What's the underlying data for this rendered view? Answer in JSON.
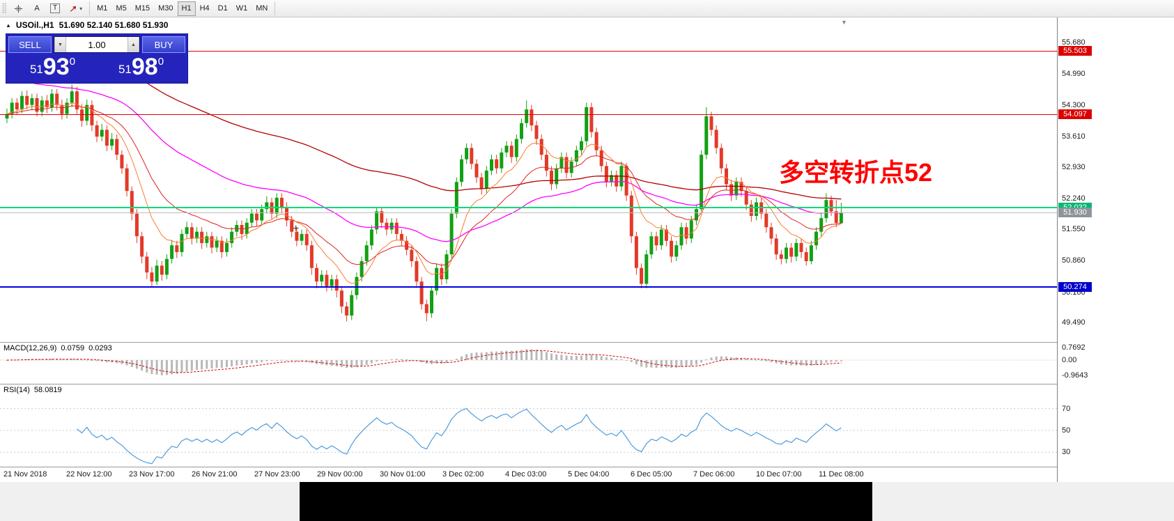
{
  "toolbar": {
    "tools": {
      "text_label": "A",
      "text_box": "T"
    },
    "timeframes": [
      "M1",
      "M5",
      "M15",
      "M30",
      "H1",
      "H4",
      "D1",
      "W1",
      "MN"
    ],
    "active_timeframe": "H1"
  },
  "chart": {
    "symbol_title": "USOil.,H1",
    "ohlc": "51.690 52.140 51.680 51.930",
    "annotation": "多空转折点52",
    "icons": {
      "collapse": "▲",
      "dropdown_caret": "▾",
      "spinner_down": "▼",
      "spinner_up": "▲",
      "shift_marker": "▼",
      "crosshair_cursor": "+"
    },
    "trade": {
      "sell": "SELL",
      "buy": "BUY",
      "volume": "1.00",
      "sell_price_prefix": "51",
      "sell_price_big": "93",
      "sell_price_sup": "0",
      "buy_price_prefix": "51",
      "buy_price_big": "98",
      "buy_price_sup": "0"
    },
    "price_axis": [
      {
        "label": "55.680",
        "value": 55.68
      },
      {
        "label": "54.990",
        "value": 54.99
      },
      {
        "label": "54.300",
        "value": 54.3
      },
      {
        "label": "53.610",
        "value": 53.61
      },
      {
        "label": "52.930",
        "value": 52.93
      },
      {
        "label": "52.240",
        "value": 52.24
      },
      {
        "label": "51.550",
        "value": 51.55
      },
      {
        "label": "50.860",
        "value": 50.86
      },
      {
        "label": "50.160",
        "value": 50.16
      },
      {
        "label": "49.490",
        "value": 49.49
      }
    ],
    "levels": [
      {
        "label": "55.503",
        "value": 55.503,
        "color": "#dc0000",
        "line_color": "#e00000",
        "thickness": 1
      },
      {
        "label": "54.097",
        "value": 54.097,
        "color": "#dc0000",
        "line_color": "#e00000",
        "thickness": 1
      },
      {
        "label": "52.032",
        "value": 52.032,
        "color": "#00b876",
        "line_color": "#00dc78",
        "thickness": 2
      },
      {
        "label": "51.930",
        "value": 51.93,
        "color": "#8e949b",
        "line_color": "#bcbcbc",
        "thickness": 1
      },
      {
        "label": "50.274",
        "value": 50.274,
        "color": "#0000cc",
        "line_color": "#0000e0",
        "thickness": 2
      }
    ]
  },
  "macd": {
    "name": "MACD(12,26,9)",
    "main": "0.0759",
    "signal": "0.0293",
    "axis": [
      {
        "label": "0.7692",
        "value": 0.7692
      },
      {
        "label": "0.00",
        "value": 0
      },
      {
        "label": "-0.9643",
        "value": -0.9643
      }
    ]
  },
  "rsi": {
    "name": "RSI(14)",
    "value": "58.0819",
    "axis": [
      {
        "label": "70",
        "value": 70
      },
      {
        "label": "50",
        "value": 50
      },
      {
        "label": "30",
        "value": 30
      }
    ]
  },
  "time_axis": [
    "21 Nov 2018",
    "22 Nov 12:00",
    "23 Nov 17:00",
    "26 Nov 21:00",
    "27 Nov 23:00",
    "29 Nov 00:00",
    "30 Nov 01:00",
    "3 Dec 02:00",
    "4 Dec 03:00",
    "5 Dec 04:00",
    "6 Dec 05:00",
    "7 Dec 06:00",
    "10 Dec 07:00",
    "11 Dec 08:00"
  ],
  "chart_data": {
    "type": "candlestick",
    "symbol": "USOil",
    "timeframe": "H1",
    "y_axis": {
      "min": 49.3,
      "max": 55.9
    },
    "horizontal_levels": {
      "resistance": [
        55.503,
        54.097
      ],
      "pivot": 52.032,
      "bid": 51.93,
      "support": 50.274
    },
    "colors": {
      "up": "#12a014",
      "down": "#e23a28",
      "ma_fast": "#ff7a30",
      "ma_med": "#dd2222",
      "ma_slow": "#ff00ff",
      "ma_long": "#b40000",
      "macd_hist": "#b8b8b8",
      "macd_signal": "#d40000",
      "rsi": "#4e9bdb"
    },
    "candles": [
      [
        54.0,
        54.22,
        53.9,
        54.1
      ],
      [
        54.1,
        54.45,
        54.0,
        54.35
      ],
      [
        54.35,
        54.45,
        54.08,
        54.2
      ],
      [
        54.2,
        54.6,
        54.12,
        54.5
      ],
      [
        54.5,
        54.62,
        54.2,
        54.3
      ],
      [
        54.3,
        54.55,
        54.18,
        54.45
      ],
      [
        54.45,
        54.55,
        54.05,
        54.15
      ],
      [
        54.15,
        54.5,
        54.05,
        54.4
      ],
      [
        54.4,
        54.52,
        54.12,
        54.25
      ],
      [
        54.25,
        54.65,
        54.15,
        54.55
      ],
      [
        54.55,
        54.65,
        54.18,
        54.3
      ],
      [
        54.3,
        54.42,
        53.98,
        54.1
      ],
      [
        54.1,
        54.45,
        54.0,
        54.35
      ],
      [
        54.35,
        54.75,
        54.25,
        54.6
      ],
      [
        54.6,
        54.7,
        54.08,
        54.2
      ],
      [
        54.2,
        54.32,
        53.82,
        53.95
      ],
      [
        53.95,
        54.42,
        53.85,
        54.3
      ],
      [
        54.3,
        54.4,
        53.72,
        53.85
      ],
      [
        53.85,
        53.95,
        53.48,
        53.6
      ],
      [
        53.6,
        53.88,
        53.5,
        53.75
      ],
      [
        53.75,
        53.85,
        53.28,
        53.4
      ],
      [
        53.4,
        53.68,
        53.3,
        53.55
      ],
      [
        53.55,
        53.65,
        53.08,
        53.2
      ],
      [
        53.2,
        53.3,
        52.78,
        52.9
      ],
      [
        52.9,
        53.0,
        52.28,
        52.4
      ],
      [
        52.4,
        52.5,
        51.75,
        51.9
      ],
      [
        51.9,
        52.0,
        51.25,
        51.4
      ],
      [
        51.4,
        51.5,
        50.8,
        50.95
      ],
      [
        50.95,
        51.05,
        50.45,
        50.6
      ],
      [
        50.6,
        50.72,
        50.28,
        50.4
      ],
      [
        50.4,
        50.88,
        50.32,
        50.75
      ],
      [
        50.75,
        50.85,
        50.42,
        50.55
      ],
      [
        50.55,
        51.0,
        50.45,
        50.9
      ],
      [
        50.9,
        51.32,
        50.8,
        51.2
      ],
      [
        51.2,
        51.3,
        50.92,
        51.05
      ],
      [
        51.05,
        51.55,
        50.95,
        51.45
      ],
      [
        51.45,
        51.72,
        51.35,
        51.6
      ],
      [
        51.6,
        51.7,
        51.22,
        51.35
      ],
      [
        51.35,
        51.6,
        51.25,
        51.5
      ],
      [
        51.5,
        51.6,
        51.12,
        51.25
      ],
      [
        51.25,
        51.5,
        51.15,
        51.4
      ],
      [
        51.4,
        51.5,
        51.02,
        51.15
      ],
      [
        51.15,
        51.4,
        51.05,
        51.3
      ],
      [
        51.3,
        51.4,
        50.92,
        51.05
      ],
      [
        51.05,
        51.35,
        50.95,
        51.25
      ],
      [
        51.25,
        51.6,
        51.15,
        51.5
      ],
      [
        51.5,
        51.75,
        51.4,
        51.65
      ],
      [
        51.65,
        51.75,
        51.32,
        51.45
      ],
      [
        51.45,
        51.8,
        51.35,
        51.7
      ],
      [
        51.7,
        52.0,
        51.6,
        51.9
      ],
      [
        51.9,
        52.0,
        51.62,
        51.75
      ],
      [
        51.75,
        52.1,
        51.65,
        52.0
      ],
      [
        52.0,
        52.28,
        51.9,
        52.15
      ],
      [
        52.15,
        52.25,
        51.78,
        51.9
      ],
      [
        51.9,
        52.35,
        51.8,
        52.25
      ],
      [
        52.25,
        52.35,
        51.92,
        52.05
      ],
      [
        52.05,
        52.15,
        51.62,
        51.75
      ],
      [
        51.75,
        51.85,
        51.38,
        51.5
      ],
      [
        51.5,
        51.6,
        51.18,
        51.3
      ],
      [
        51.3,
        51.55,
        51.2,
        51.45
      ],
      [
        51.45,
        51.55,
        51.08,
        51.2
      ],
      [
        51.2,
        51.3,
        50.55,
        50.7
      ],
      [
        50.7,
        50.8,
        50.25,
        50.4
      ],
      [
        50.4,
        50.65,
        50.3,
        50.55
      ],
      [
        50.55,
        50.65,
        50.18,
        50.3
      ],
      [
        50.3,
        50.55,
        50.2,
        50.45
      ],
      [
        50.45,
        50.55,
        50.05,
        50.2
      ],
      [
        50.2,
        50.3,
        49.7,
        49.85
      ],
      [
        49.85,
        49.95,
        49.52,
        49.65
      ],
      [
        49.65,
        50.2,
        49.55,
        50.1
      ],
      [
        50.1,
        50.6,
        50.0,
        50.5
      ],
      [
        50.5,
        50.95,
        50.4,
        50.85
      ],
      [
        50.85,
        51.3,
        50.75,
        51.2
      ],
      [
        51.2,
        51.65,
        51.1,
        51.55
      ],
      [
        51.55,
        52.05,
        51.45,
        51.95
      ],
      [
        51.95,
        52.05,
        51.58,
        51.7
      ],
      [
        51.7,
        51.8,
        51.42,
        51.55
      ],
      [
        51.55,
        51.8,
        51.45,
        51.7
      ],
      [
        51.7,
        51.8,
        51.32,
        51.45
      ],
      [
        51.45,
        51.55,
        51.18,
        51.3
      ],
      [
        51.3,
        51.4,
        50.98,
        51.1
      ],
      [
        51.1,
        51.2,
        50.72,
        50.85
      ],
      [
        50.85,
        50.95,
        50.28,
        50.4
      ],
      [
        50.4,
        50.5,
        49.78,
        49.9
      ],
      [
        49.9,
        50.0,
        49.52,
        49.7
      ],
      [
        49.7,
        50.3,
        49.6,
        50.2
      ],
      [
        50.2,
        50.8,
        50.1,
        50.7
      ],
      [
        50.7,
        50.8,
        50.32,
        50.45
      ],
      [
        50.45,
        51.1,
        50.35,
        51.0
      ],
      [
        51.0,
        52.0,
        50.9,
        51.9
      ],
      [
        51.9,
        52.7,
        51.8,
        52.6
      ],
      [
        52.6,
        53.2,
        52.5,
        53.1
      ],
      [
        53.1,
        53.45,
        53.0,
        53.35
      ],
      [
        53.35,
        53.45,
        52.88,
        53.0
      ],
      [
        53.0,
        53.1,
        52.58,
        52.7
      ],
      [
        52.7,
        52.8,
        52.32,
        52.45
      ],
      [
        52.45,
        52.95,
        52.35,
        52.85
      ],
      [
        52.85,
        53.2,
        52.75,
        53.1
      ],
      [
        53.1,
        53.2,
        52.78,
        52.9
      ],
      [
        52.9,
        53.35,
        52.8,
        53.25
      ],
      [
        53.25,
        53.5,
        53.15,
        53.4
      ],
      [
        53.4,
        53.5,
        53.02,
        53.15
      ],
      [
        53.15,
        53.65,
        53.05,
        53.55
      ],
      [
        53.55,
        54.0,
        53.45,
        53.9
      ],
      [
        53.9,
        54.4,
        53.8,
        54.2
      ],
      [
        54.2,
        54.3,
        53.72,
        53.85
      ],
      [
        53.85,
        53.95,
        53.42,
        53.55
      ],
      [
        53.55,
        53.65,
        53.08,
        53.2
      ],
      [
        53.2,
        53.3,
        52.72,
        52.85
      ],
      [
        52.85,
        52.95,
        52.42,
        52.55
      ],
      [
        52.55,
        53.0,
        52.45,
        52.9
      ],
      [
        52.9,
        53.25,
        52.8,
        53.15
      ],
      [
        53.15,
        53.25,
        52.68,
        52.8
      ],
      [
        52.8,
        53.15,
        52.7,
        53.05
      ],
      [
        53.05,
        53.4,
        52.95,
        53.3
      ],
      [
        53.3,
        53.6,
        53.2,
        53.5
      ],
      [
        53.5,
        54.35,
        53.4,
        54.25
      ],
      [
        54.25,
        54.35,
        53.58,
        53.7
      ],
      [
        53.7,
        53.8,
        53.18,
        53.3
      ],
      [
        53.3,
        53.4,
        52.82,
        52.95
      ],
      [
        52.95,
        53.05,
        52.48,
        52.6
      ],
      [
        52.6,
        52.85,
        52.5,
        52.75
      ],
      [
        52.75,
        52.85,
        52.38,
        52.5
      ],
      [
        52.5,
        53.05,
        52.4,
        52.95
      ],
      [
        52.95,
        53.02,
        52.18,
        52.3
      ],
      [
        52.3,
        52.4,
        51.25,
        51.4
      ],
      [
        51.4,
        51.5,
        50.55,
        50.7
      ],
      [
        50.7,
        50.8,
        50.25,
        50.35
      ],
      [
        50.35,
        51.1,
        50.25,
        51.0
      ],
      [
        51.0,
        51.5,
        50.9,
        51.4
      ],
      [
        51.4,
        51.5,
        51.08,
        51.2
      ],
      [
        51.2,
        51.65,
        51.1,
        51.55
      ],
      [
        51.55,
        51.65,
        51.18,
        51.3
      ],
      [
        51.3,
        51.4,
        50.82,
        50.95
      ],
      [
        50.95,
        51.3,
        50.85,
        51.2
      ],
      [
        51.2,
        51.7,
        51.1,
        51.6
      ],
      [
        51.6,
        51.7,
        51.22,
        51.35
      ],
      [
        51.35,
        51.85,
        51.25,
        51.75
      ],
      [
        51.75,
        52.1,
        51.65,
        52.0
      ],
      [
        52.0,
        53.3,
        51.95,
        53.2
      ],
      [
        53.2,
        54.25,
        53.1,
        54.05
      ],
      [
        54.05,
        54.15,
        53.62,
        53.75
      ],
      [
        53.75,
        53.85,
        53.22,
        53.35
      ],
      [
        53.35,
        53.45,
        52.78,
        52.9
      ],
      [
        52.9,
        53.0,
        52.42,
        52.55
      ],
      [
        52.55,
        52.65,
        52.18,
        52.3
      ],
      [
        52.3,
        52.7,
        52.2,
        52.6
      ],
      [
        52.6,
        52.7,
        52.28,
        52.4
      ],
      [
        52.4,
        52.5,
        51.98,
        52.1
      ],
      [
        52.1,
        52.2,
        51.72,
        51.85
      ],
      [
        51.85,
        52.25,
        51.75,
        52.15
      ],
      [
        52.15,
        52.25,
        51.78,
        51.9
      ],
      [
        51.9,
        52.0,
        51.48,
        51.6
      ],
      [
        51.6,
        51.7,
        51.22,
        51.35
      ],
      [
        51.35,
        51.45,
        50.88,
        51.0
      ],
      [
        51.0,
        51.1,
        50.78,
        50.9
      ],
      [
        50.9,
        51.25,
        50.8,
        51.15
      ],
      [
        51.15,
        51.25,
        50.82,
        50.95
      ],
      [
        50.95,
        51.35,
        50.85,
        51.25
      ],
      [
        51.25,
        51.35,
        50.92,
        51.05
      ],
      [
        51.05,
        51.15,
        50.75,
        50.85
      ],
      [
        50.85,
        51.3,
        50.78,
        51.2
      ],
      [
        51.2,
        51.6,
        51.1,
        51.5
      ],
      [
        51.5,
        51.9,
        51.4,
        51.8
      ],
      [
        51.8,
        52.35,
        51.7,
        52.2
      ],
      [
        52.2,
        52.3,
        51.85,
        51.95
      ],
      [
        51.95,
        52.2,
        51.6,
        51.69
      ],
      [
        51.69,
        52.14,
        51.68,
        51.93
      ]
    ]
  }
}
